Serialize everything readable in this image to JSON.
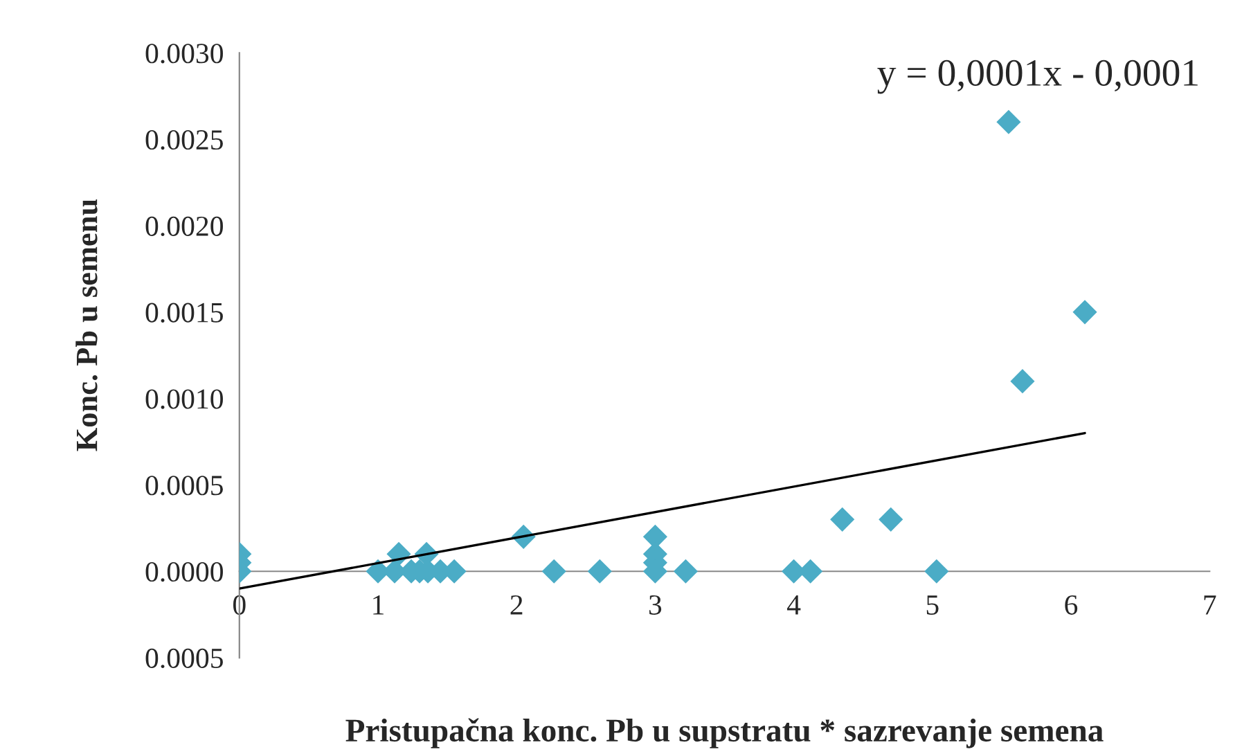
{
  "chart_data": {
    "type": "scatter",
    "xlabel": "Pristupačna konc. Pb u supstratu * sazrevanje semena",
    "ylabel": "Konc. Pb u semenu",
    "xlim": [
      0,
      7
    ],
    "xticks": [
      0,
      1,
      2,
      3,
      4,
      5,
      6,
      7
    ],
    "ylim": [
      -0.0005,
      0.003
    ],
    "yticks": [
      {
        "value": -0.0005,
        "label": "0.0005"
      },
      {
        "value": 0,
        "label": "0.0000"
      },
      {
        "value": 0.0005,
        "label": "0.0005"
      },
      {
        "value": 0.001,
        "label": "0.0010"
      },
      {
        "value": 0.0015,
        "label": "0.0015"
      },
      {
        "value": 0.002,
        "label": "0.0020"
      },
      {
        "value": 0.0025,
        "label": "0.0025"
      },
      {
        "value": 0.003,
        "label": "0.0030"
      }
    ],
    "grid": false,
    "marker": "diamond",
    "annotations": [
      "y = 0,0001x - 0,0001"
    ],
    "series": [
      {
        "color": "#4bacc6",
        "x": [
          0,
          0,
          0,
          1.0,
          1.12,
          1.24,
          1.3,
          1.36,
          1.45,
          1.55,
          1.15,
          1.35,
          2.05,
          2.27,
          2.6,
          3.0,
          3.0,
          3.0,
          3.0,
          3.22,
          4.0,
          4.12,
          4.35,
          4.7,
          5.03,
          5.55,
          5.65,
          6.1
        ],
        "values": [
          0.0001,
          5e-05,
          0,
          0,
          0,
          0,
          0,
          0,
          0,
          0,
          0.0001,
          0.0001,
          0.0002,
          0,
          0,
          0.0002,
          0.0001,
          5e-05,
          0,
          0,
          0,
          0,
          0.0003,
          0.0003,
          0,
          0.0026,
          0.0011,
          0.0015
        ]
      },
      {
        "type": "line",
        "color": "#000000",
        "x": [
          0,
          6.1
        ],
        "values": [
          -0.0001,
          0.0008
        ],
        "marker": "none"
      }
    ]
  }
}
